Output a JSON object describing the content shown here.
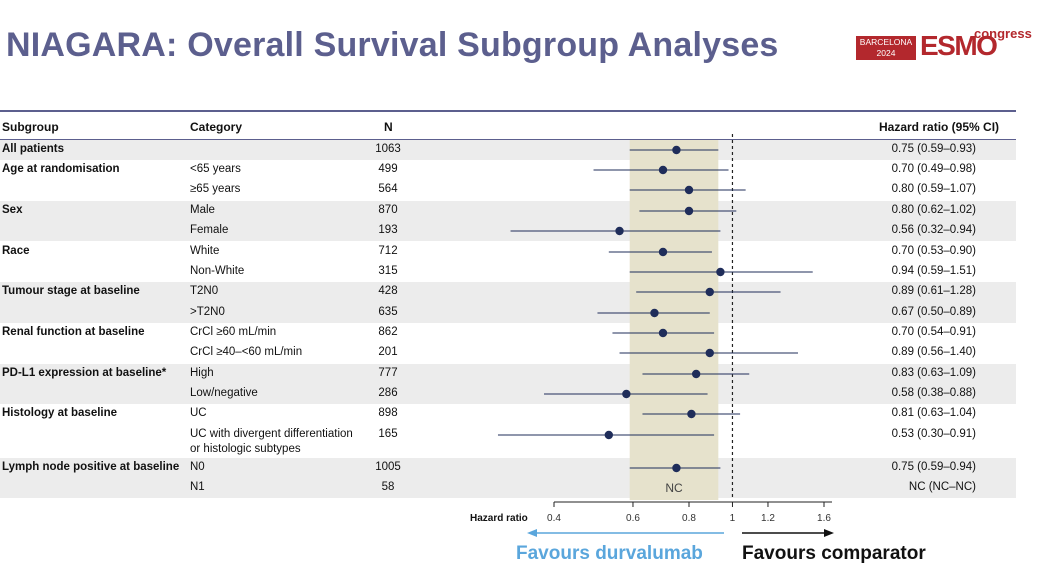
{
  "title": "NIAGARA: Overall Survival Subgroup Analyses",
  "logo": {
    "badge_line1": "BARCELONA",
    "badge_line2": "2024",
    "wordmark": "ESMO",
    "suffix": "congress"
  },
  "headers": {
    "subgroup": "Subgroup",
    "category": "Category",
    "n": "N",
    "hr": "Hazard ratio (95% CI)"
  },
  "rows": [
    {
      "subgroup": "All patients",
      "category": "",
      "n": "1063",
      "hr_text": "0.75 (0.59–0.93)"
    },
    {
      "subgroup": "Age at randomisation",
      "category": "<65 years",
      "n": "499",
      "hr_text": "0.70 (0.49–0.98)"
    },
    {
      "subgroup": "",
      "category": "≥65 years",
      "n": "564",
      "hr_text": "0.80 (0.59–1.07)"
    },
    {
      "subgroup": "Sex",
      "category": "Male",
      "n": "870",
      "hr_text": "0.80 (0.62–1.02)"
    },
    {
      "subgroup": "",
      "category": "Female",
      "n": "193",
      "hr_text": "0.56 (0.32–0.94)"
    },
    {
      "subgroup": "Race",
      "category": "White",
      "n": "712",
      "hr_text": "0.70 (0.53–0.90)"
    },
    {
      "subgroup": "",
      "category": "Non-White",
      "n": "315",
      "hr_text": "0.94 (0.59–1.51)"
    },
    {
      "subgroup": "Tumour stage at baseline",
      "category": "T2N0",
      "n": "428",
      "hr_text": "0.89 (0.61–1.28)"
    },
    {
      "subgroup": "",
      "category": ">T2N0",
      "n": "635",
      "hr_text": "0.67 (0.50–0.89)"
    },
    {
      "subgroup": "Renal function at baseline",
      "category": "CrCl ≥60 mL/min",
      "n": "862",
      "hr_text": "0.70 (0.54–0.91)"
    },
    {
      "subgroup": "",
      "category": "CrCl ≥40–<60 mL/min",
      "n": "201",
      "hr_text": "0.89 (0.56–1.40)"
    },
    {
      "subgroup": "PD-L1 expression at baseline*",
      "category": "High",
      "n": "777",
      "hr_text": "0.83 (0.63–1.09)"
    },
    {
      "subgroup": "",
      "category": "Low/negative",
      "n": "286",
      "hr_text": "0.58 (0.38–0.88)"
    },
    {
      "subgroup": "Histology at baseline",
      "category": "UC",
      "n": "898",
      "hr_text": "0.81 (0.63–1.04)"
    },
    {
      "subgroup": "",
      "category": "UC with divergent differentiation",
      "category2": "or histologic subtypes",
      "n": "165",
      "hr_text": "0.53 (0.30–0.91)"
    },
    {
      "subgroup": "Lymph node positive at baseline",
      "category": "N0",
      "n": "1005",
      "hr_text": "0.75 (0.59–0.94)"
    },
    {
      "subgroup": "",
      "category": "N1",
      "n": "58",
      "hr_text": "NC (NC–NC)"
    }
  ],
  "nc_label": "NC",
  "axis": {
    "label": "Hazard ratio",
    "ticks": [
      "0.4",
      "0.6",
      "0.8",
      "1",
      "1.2",
      "1.6"
    ]
  },
  "favours_left": "Favours durvalumab",
  "favours_right": "Favours comparator",
  "colors": {
    "title": "#5c5f8e",
    "point": "#1f2d5a",
    "shade": "#e6e2cc",
    "favours_left": "#5aa6dc",
    "band": "#ececec"
  },
  "chart_data": {
    "type": "forest",
    "xlabel": "Hazard ratio",
    "xscale": "log",
    "xlim": [
      0.4,
      1.6
    ],
    "xticks": [
      0.4,
      0.6,
      0.8,
      1,
      1.2,
      1.6
    ],
    "reference_line": 1,
    "overall_ci_band": [
      0.59,
      0.93
    ],
    "series": [
      {
        "subgroup": "All patients",
        "category": "",
        "hr": 0.75,
        "lo": 0.59,
        "hi": 0.93
      },
      {
        "subgroup": "Age at randomisation",
        "category": "<65 years",
        "hr": 0.7,
        "lo": 0.49,
        "hi": 0.98
      },
      {
        "subgroup": "Age at randomisation",
        "category": "≥65 years",
        "hr": 0.8,
        "lo": 0.59,
        "hi": 1.07
      },
      {
        "subgroup": "Sex",
        "category": "Male",
        "hr": 0.8,
        "lo": 0.62,
        "hi": 1.02
      },
      {
        "subgroup": "Sex",
        "category": "Female",
        "hr": 0.56,
        "lo": 0.32,
        "hi": 0.94
      },
      {
        "subgroup": "Race",
        "category": "White",
        "hr": 0.7,
        "lo": 0.53,
        "hi": 0.9
      },
      {
        "subgroup": "Race",
        "category": "Non-White",
        "hr": 0.94,
        "lo": 0.59,
        "hi": 1.51
      },
      {
        "subgroup": "Tumour stage at baseline",
        "category": "T2N0",
        "hr": 0.89,
        "lo": 0.61,
        "hi": 1.28
      },
      {
        "subgroup": "Tumour stage at baseline",
        "category": ">T2N0",
        "hr": 0.67,
        "lo": 0.5,
        "hi": 0.89
      },
      {
        "subgroup": "Renal function at baseline",
        "category": "CrCl ≥60 mL/min",
        "hr": 0.7,
        "lo": 0.54,
        "hi": 0.91
      },
      {
        "subgroup": "Renal function at baseline",
        "category": "CrCl ≥40–<60 mL/min",
        "hr": 0.89,
        "lo": 0.56,
        "hi": 1.4
      },
      {
        "subgroup": "PD-L1 expression at baseline*",
        "category": "High",
        "hr": 0.83,
        "lo": 0.63,
        "hi": 1.09
      },
      {
        "subgroup": "PD-L1 expression at baseline*",
        "category": "Low/negative",
        "hr": 0.58,
        "lo": 0.38,
        "hi": 0.88
      },
      {
        "subgroup": "Histology at baseline",
        "category": "UC",
        "hr": 0.81,
        "lo": 0.63,
        "hi": 1.04
      },
      {
        "subgroup": "Histology at baseline",
        "category": "UC with divergent differentiation or histologic subtypes",
        "hr": 0.53,
        "lo": 0.3,
        "hi": 0.91
      },
      {
        "subgroup": "Lymph node positive at baseline",
        "category": "N0",
        "hr": 0.75,
        "lo": 0.59,
        "hi": 0.94
      },
      {
        "subgroup": "Lymph node positive at baseline",
        "category": "N1",
        "hr": null,
        "lo": null,
        "hi": null
      }
    ]
  }
}
